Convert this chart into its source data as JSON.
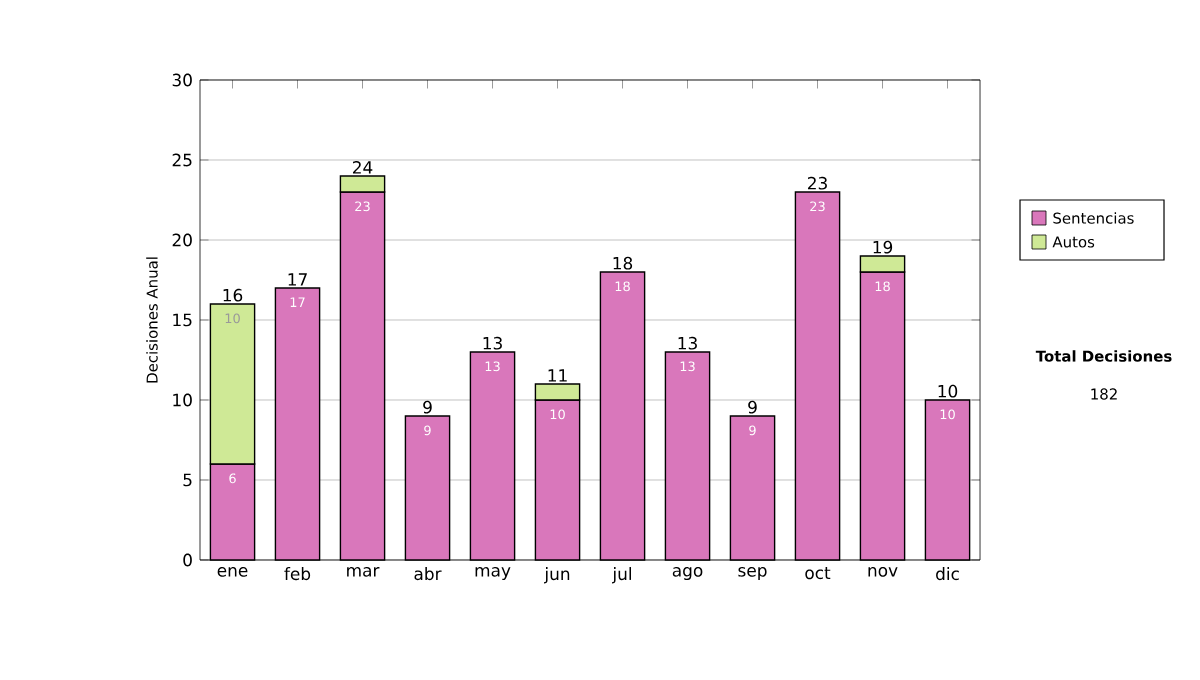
{
  "chart_data": {
    "type": "bar",
    "stacked": true,
    "ylabel": "Decisiones Anual",
    "categories": [
      "ene",
      "feb",
      "mar",
      "abr",
      "may",
      "jun",
      "jul",
      "ago",
      "sep",
      "oct",
      "nov",
      "dic"
    ],
    "series": [
      {
        "name": "Sentencias",
        "color": "#d977bb",
        "values": [
          6,
          17,
          23,
          9,
          13,
          10,
          18,
          13,
          9,
          23,
          18,
          10
        ],
        "value_labels": [
          "6",
          "17",
          "23",
          "9",
          "13",
          "10",
          "18",
          "13",
          "9",
          "23",
          "18",
          "10"
        ]
      },
      {
        "name": "Autos",
        "color": "#cfe996",
        "values": [
          10,
          null,
          1,
          null,
          null,
          1,
          null,
          null,
          null,
          null,
          1,
          null
        ],
        "value_labels": [
          "10",
          null,
          null,
          null,
          null,
          null,
          null,
          null,
          null,
          null,
          null,
          null
        ]
      }
    ],
    "totals": [
      "16",
      "17",
      "24",
      "9",
      "13",
      "11",
      "18",
      "13",
      "9",
      "23",
      "19",
      "10"
    ],
    "ylim": [
      0,
      30
    ],
    "yticks": [
      0,
      5,
      10,
      15,
      20,
      25,
      30
    ],
    "grid": "y",
    "legend": "right",
    "annotations": [
      "**Total Decisiones**",
      "182"
    ]
  }
}
